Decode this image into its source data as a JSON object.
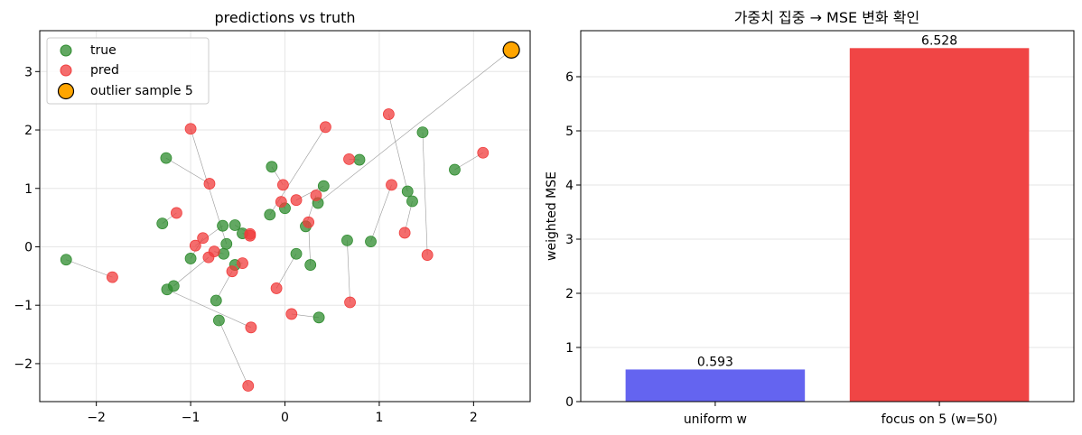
{
  "chart_data": [
    {
      "type": "scatter",
      "title": "predictions vs truth",
      "xlim": [
        -2.6,
        2.6
      ],
      "ylim": [
        -2.65,
        3.7
      ],
      "xticks": [
        "−2",
        "−1",
        "0",
        "1",
        "2"
      ],
      "xtick_values": [
        -2,
        -1,
        0,
        1,
        2
      ],
      "yticks": [
        "−2",
        "−1",
        "0",
        "1",
        "2",
        "3"
      ],
      "ytick_values": [
        -2,
        -1,
        0,
        1,
        2,
        3
      ],
      "grid": true,
      "legend_position": "upper-left",
      "legend": [
        "true",
        "pred",
        "outlier sample 5"
      ],
      "colors": {
        "true": "#2e8b2e",
        "pred": "#f03c3c",
        "outlier": "#ffa500",
        "line": "#808080"
      },
      "outlier": {
        "true": [
          0.35,
          0.75
        ],
        "pred": [
          2.4,
          3.37
        ]
      },
      "pairs": [
        {
          "true": [
            -2.32,
            -0.22
          ],
          "pred": [
            -1.83,
            -0.52
          ]
        },
        {
          "true": [
            -1.26,
            1.52
          ],
          "pred": [
            -0.8,
            1.08
          ]
        },
        {
          "true": [
            -1.3,
            0.4
          ],
          "pred": [
            -1.15,
            0.58
          ]
        },
        {
          "true": [
            -1.25,
            -0.73
          ],
          "pred": [
            -0.36,
            -1.38
          ]
        },
        {
          "true": [
            -1.18,
            -0.67
          ],
          "pred": [
            -0.81,
            -0.18
          ]
        },
        {
          "true": [
            -1.0,
            -0.2
          ],
          "pred": [
            -0.87,
            0.15
          ]
        },
        {
          "true": [
            -0.73,
            -0.92
          ],
          "pred": [
            -0.56,
            -0.42
          ]
        },
        {
          "true": [
            -0.7,
            -1.26
          ],
          "pred": [
            -0.39,
            -2.38
          ]
        },
        {
          "true": [
            -0.66,
            0.36
          ],
          "pred": [
            -0.95,
            0.02
          ]
        },
        {
          "true": [
            -0.65,
            -0.12
          ],
          "pred": [
            -0.75,
            -0.08
          ]
        },
        {
          "true": [
            -0.62,
            0.05
          ],
          "pred": [
            -1.0,
            2.02
          ]
        },
        {
          "true": [
            -0.53,
            -0.31
          ],
          "pred": [
            -0.45,
            -0.28
          ]
        },
        {
          "true": [
            -0.53,
            0.37
          ],
          "pred": [
            -0.37,
            0.22
          ]
        },
        {
          "true": [
            -0.45,
            0.23
          ],
          "pred": [
            -0.37,
            0.19
          ]
        },
        {
          "true": [
            -0.14,
            1.37
          ],
          "pred": [
            -0.02,
            1.06
          ]
        },
        {
          "true": [
            -0.16,
            0.55
          ],
          "pred": [
            0.43,
            2.05
          ]
        },
        {
          "true": [
            0.0,
            0.66
          ],
          "pred": [
            -0.04,
            0.77
          ]
        },
        {
          "true": [
            0.12,
            -0.12
          ],
          "pred": [
            -0.09,
            -0.71
          ]
        },
        {
          "true": [
            0.22,
            0.35
          ],
          "pred": [
            0.33,
            0.88
          ]
        },
        {
          "true": [
            0.27,
            -0.31
          ],
          "pred": [
            0.25,
            0.42
          ]
        },
        {
          "true": [
            0.36,
            -1.21
          ],
          "pred": [
            0.07,
            -1.15
          ]
        },
        {
          "true": [
            0.41,
            1.04
          ],
          "pred": [
            0.12,
            0.8
          ]
        },
        {
          "true": [
            0.66,
            0.11
          ],
          "pred": [
            0.69,
            -0.95
          ]
        },
        {
          "true": [
            0.79,
            1.49
          ],
          "pred": [
            0.68,
            1.5
          ]
        },
        {
          "true": [
            0.91,
            0.09
          ],
          "pred": [
            1.13,
            1.06
          ]
        },
        {
          "true": [
            1.3,
            0.95
          ],
          "pred": [
            1.1,
            2.27
          ]
        },
        {
          "true": [
            1.35,
            0.78
          ],
          "pred": [
            1.27,
            0.24
          ]
        },
        {
          "true": [
            1.46,
            1.96
          ],
          "pred": [
            1.51,
            -0.14
          ]
        },
        {
          "true": [
            1.8,
            1.32
          ],
          "pred": [
            2.1,
            1.61
          ]
        }
      ]
    },
    {
      "type": "bar",
      "title": "가중치 집중 → MSE 변화 확인",
      "ylabel": "weighted MSE",
      "categories": [
        "uniform w",
        "focus on 5 (w=50)"
      ],
      "values": [
        0.593,
        6.528
      ],
      "value_labels": [
        "0.593",
        "6.528"
      ],
      "colors": [
        "#6464f0",
        "#f04545"
      ],
      "ylim": [
        0,
        6.85
      ],
      "yticks": [
        "0",
        "1",
        "2",
        "3",
        "4",
        "5",
        "6"
      ],
      "ytick_values": [
        0,
        1,
        2,
        3,
        4,
        5,
        6
      ],
      "grid": true
    }
  ]
}
